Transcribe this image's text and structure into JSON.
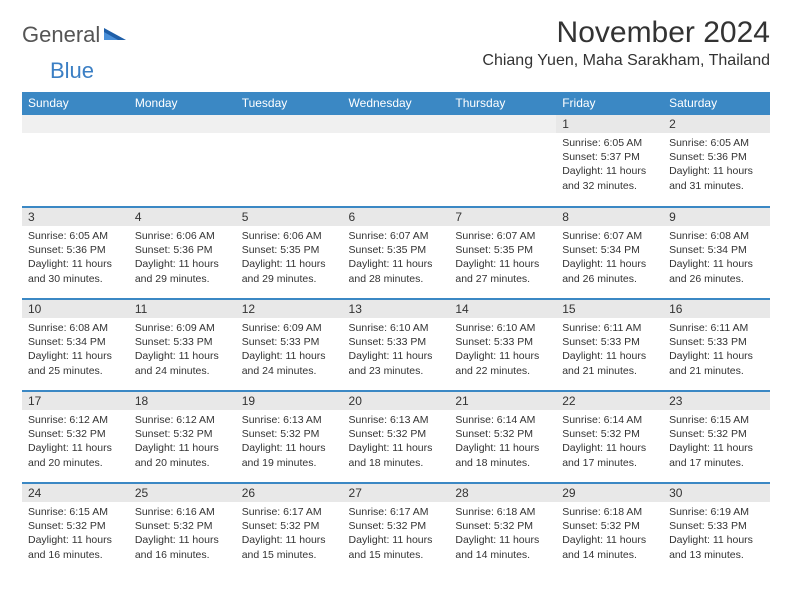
{
  "logo": {
    "text1": "General",
    "text2": "Blue"
  },
  "title": "November 2024",
  "location": "Chiang Yuen, Maha Sarakham, Thailand",
  "colors": {
    "header_bg": "#3b88c4",
    "header_text": "#ffffff",
    "daynum_bg": "#e8e8e8",
    "border": "#3b88c4",
    "text": "#333333"
  },
  "day_headers": [
    "Sunday",
    "Monday",
    "Tuesday",
    "Wednesday",
    "Thursday",
    "Friday",
    "Saturday"
  ],
  "weeks": [
    [
      {
        "n": "",
        "sr": "",
        "ss": "",
        "dl": ""
      },
      {
        "n": "",
        "sr": "",
        "ss": "",
        "dl": ""
      },
      {
        "n": "",
        "sr": "",
        "ss": "",
        "dl": ""
      },
      {
        "n": "",
        "sr": "",
        "ss": "",
        "dl": ""
      },
      {
        "n": "",
        "sr": "",
        "ss": "",
        "dl": ""
      },
      {
        "n": "1",
        "sr": "Sunrise: 6:05 AM",
        "ss": "Sunset: 5:37 PM",
        "dl": "Daylight: 11 hours and 32 minutes."
      },
      {
        "n": "2",
        "sr": "Sunrise: 6:05 AM",
        "ss": "Sunset: 5:36 PM",
        "dl": "Daylight: 11 hours and 31 minutes."
      }
    ],
    [
      {
        "n": "3",
        "sr": "Sunrise: 6:05 AM",
        "ss": "Sunset: 5:36 PM",
        "dl": "Daylight: 11 hours and 30 minutes."
      },
      {
        "n": "4",
        "sr": "Sunrise: 6:06 AM",
        "ss": "Sunset: 5:36 PM",
        "dl": "Daylight: 11 hours and 29 minutes."
      },
      {
        "n": "5",
        "sr": "Sunrise: 6:06 AM",
        "ss": "Sunset: 5:35 PM",
        "dl": "Daylight: 11 hours and 29 minutes."
      },
      {
        "n": "6",
        "sr": "Sunrise: 6:07 AM",
        "ss": "Sunset: 5:35 PM",
        "dl": "Daylight: 11 hours and 28 minutes."
      },
      {
        "n": "7",
        "sr": "Sunrise: 6:07 AM",
        "ss": "Sunset: 5:35 PM",
        "dl": "Daylight: 11 hours and 27 minutes."
      },
      {
        "n": "8",
        "sr": "Sunrise: 6:07 AM",
        "ss": "Sunset: 5:34 PM",
        "dl": "Daylight: 11 hours and 26 minutes."
      },
      {
        "n": "9",
        "sr": "Sunrise: 6:08 AM",
        "ss": "Sunset: 5:34 PM",
        "dl": "Daylight: 11 hours and 26 minutes."
      }
    ],
    [
      {
        "n": "10",
        "sr": "Sunrise: 6:08 AM",
        "ss": "Sunset: 5:34 PM",
        "dl": "Daylight: 11 hours and 25 minutes."
      },
      {
        "n": "11",
        "sr": "Sunrise: 6:09 AM",
        "ss": "Sunset: 5:33 PM",
        "dl": "Daylight: 11 hours and 24 minutes."
      },
      {
        "n": "12",
        "sr": "Sunrise: 6:09 AM",
        "ss": "Sunset: 5:33 PM",
        "dl": "Daylight: 11 hours and 24 minutes."
      },
      {
        "n": "13",
        "sr": "Sunrise: 6:10 AM",
        "ss": "Sunset: 5:33 PM",
        "dl": "Daylight: 11 hours and 23 minutes."
      },
      {
        "n": "14",
        "sr": "Sunrise: 6:10 AM",
        "ss": "Sunset: 5:33 PM",
        "dl": "Daylight: 11 hours and 22 minutes."
      },
      {
        "n": "15",
        "sr": "Sunrise: 6:11 AM",
        "ss": "Sunset: 5:33 PM",
        "dl": "Daylight: 11 hours and 21 minutes."
      },
      {
        "n": "16",
        "sr": "Sunrise: 6:11 AM",
        "ss": "Sunset: 5:33 PM",
        "dl": "Daylight: 11 hours and 21 minutes."
      }
    ],
    [
      {
        "n": "17",
        "sr": "Sunrise: 6:12 AM",
        "ss": "Sunset: 5:32 PM",
        "dl": "Daylight: 11 hours and 20 minutes."
      },
      {
        "n": "18",
        "sr": "Sunrise: 6:12 AM",
        "ss": "Sunset: 5:32 PM",
        "dl": "Daylight: 11 hours and 20 minutes."
      },
      {
        "n": "19",
        "sr": "Sunrise: 6:13 AM",
        "ss": "Sunset: 5:32 PM",
        "dl": "Daylight: 11 hours and 19 minutes."
      },
      {
        "n": "20",
        "sr": "Sunrise: 6:13 AM",
        "ss": "Sunset: 5:32 PM",
        "dl": "Daylight: 11 hours and 18 minutes."
      },
      {
        "n": "21",
        "sr": "Sunrise: 6:14 AM",
        "ss": "Sunset: 5:32 PM",
        "dl": "Daylight: 11 hours and 18 minutes."
      },
      {
        "n": "22",
        "sr": "Sunrise: 6:14 AM",
        "ss": "Sunset: 5:32 PM",
        "dl": "Daylight: 11 hours and 17 minutes."
      },
      {
        "n": "23",
        "sr": "Sunrise: 6:15 AM",
        "ss": "Sunset: 5:32 PM",
        "dl": "Daylight: 11 hours and 17 minutes."
      }
    ],
    [
      {
        "n": "24",
        "sr": "Sunrise: 6:15 AM",
        "ss": "Sunset: 5:32 PM",
        "dl": "Daylight: 11 hours and 16 minutes."
      },
      {
        "n": "25",
        "sr": "Sunrise: 6:16 AM",
        "ss": "Sunset: 5:32 PM",
        "dl": "Daylight: 11 hours and 16 minutes."
      },
      {
        "n": "26",
        "sr": "Sunrise: 6:17 AM",
        "ss": "Sunset: 5:32 PM",
        "dl": "Daylight: 11 hours and 15 minutes."
      },
      {
        "n": "27",
        "sr": "Sunrise: 6:17 AM",
        "ss": "Sunset: 5:32 PM",
        "dl": "Daylight: 11 hours and 15 minutes."
      },
      {
        "n": "28",
        "sr": "Sunrise: 6:18 AM",
        "ss": "Sunset: 5:32 PM",
        "dl": "Daylight: 11 hours and 14 minutes."
      },
      {
        "n": "29",
        "sr": "Sunrise: 6:18 AM",
        "ss": "Sunset: 5:32 PM",
        "dl": "Daylight: 11 hours and 14 minutes."
      },
      {
        "n": "30",
        "sr": "Sunrise: 6:19 AM",
        "ss": "Sunset: 5:33 PM",
        "dl": "Daylight: 11 hours and 13 minutes."
      }
    ]
  ]
}
